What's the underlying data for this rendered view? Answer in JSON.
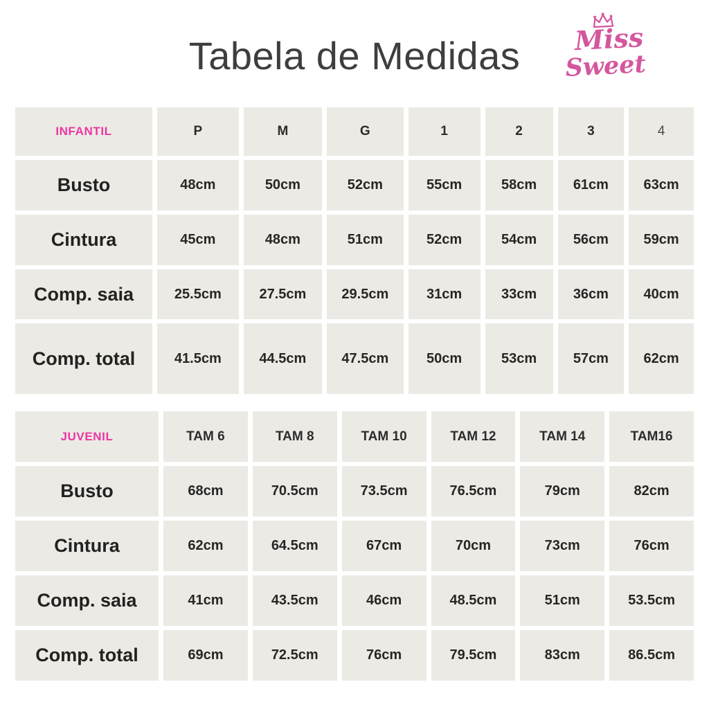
{
  "page": {
    "title": "Tabela de Medidas"
  },
  "logo": {
    "word1": "Miss",
    "word2": "Sweet"
  },
  "icons": {
    "crown-icon": "crown shape above brand name"
  },
  "colors": {
    "section_label_pink": "#EE34A4",
    "logo_pink": "#D4579E",
    "cell_background": "#ECEAE4",
    "text_dark": "#2C2C2C",
    "title_gray": "#3E3E3E",
    "page_background": "#FFFFFF"
  },
  "tables": [
    {
      "name": "infantil",
      "section_label": "INFANTIL",
      "columns": [
        {
          "label": "P",
          "weight": "semibold"
        },
        {
          "label": "M",
          "weight": "semibold"
        },
        {
          "label": "G",
          "weight": "bold"
        },
        {
          "label": "1",
          "weight": "bold"
        },
        {
          "label": "2",
          "weight": "bold"
        },
        {
          "label": "3",
          "weight": "bold"
        },
        {
          "label": "4",
          "weight": "regular"
        }
      ],
      "rows": [
        {
          "label": "Busto",
          "values": [
            "48cm",
            "50cm",
            "52cm",
            "55cm",
            "58cm",
            "61cm",
            "63cm"
          ]
        },
        {
          "label": "Cintura",
          "values": [
            "45cm",
            "48cm",
            "51cm",
            "52cm",
            "54cm",
            "56cm",
            "59cm"
          ]
        },
        {
          "label": "Comp. saia",
          "values": [
            "25.5cm",
            "27.5cm",
            "29.5cm",
            "31cm",
            "33cm",
            "36cm",
            "40cm"
          ]
        },
        {
          "label": "Comp. total",
          "values": [
            "41.5cm",
            "44.5cm",
            "47.5cm",
            "50cm",
            "53cm",
            "57cm",
            "62cm"
          ]
        }
      ]
    },
    {
      "name": "juvenil",
      "section_label": "JUVENIL",
      "columns": [
        {
          "label": "TAM 6",
          "weight": "bold"
        },
        {
          "label": "TAM 8",
          "weight": "bold"
        },
        {
          "label": "TAM 10",
          "weight": "bold"
        },
        {
          "label": "TAM 12",
          "weight": "bold"
        },
        {
          "label": "TAM 14",
          "weight": "bold"
        },
        {
          "label": "TAM16",
          "weight": "bold"
        }
      ],
      "rows": [
        {
          "label": "Busto",
          "values": [
            "68cm",
            "70.5cm",
            "73.5cm",
            "76.5cm",
            "79cm",
            "82cm"
          ]
        },
        {
          "label": "Cintura",
          "values": [
            "62cm",
            "64.5cm",
            "67cm",
            "70cm",
            "73cm",
            "76cm"
          ]
        },
        {
          "label": "Comp. saia",
          "values": [
            "41cm",
            "43.5cm",
            "46cm",
            "48.5cm",
            "51cm",
            "53.5cm"
          ]
        },
        {
          "label": "Comp. total",
          "values": [
            "69cm",
            "72.5cm",
            "76cm",
            "79.5cm",
            "83cm",
            "86.5cm"
          ]
        }
      ]
    }
  ]
}
